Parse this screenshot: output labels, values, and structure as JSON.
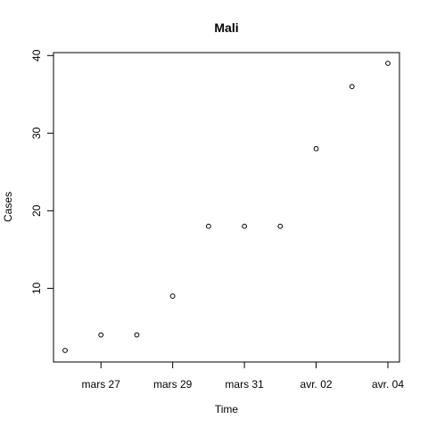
{
  "chart_data": {
    "type": "scatter",
    "title": "Mali",
    "xlabel": "Time",
    "ylabel": "Cases",
    "x": [
      "2020-03-25",
      "2020-03-26",
      "2020-03-27",
      "2020-03-28",
      "2020-03-29",
      "2020-03-30",
      "2020-03-31",
      "2020-04-01",
      "2020-04-02",
      "2020-04-03"
    ],
    "values": [
      2,
      4,
      4,
      9,
      18,
      18,
      18,
      28,
      36,
      39
    ],
    "xlim": [
      "2020-03-25",
      "2020-04-03"
    ],
    "ylim": [
      2,
      39
    ],
    "x_ticks": [
      {
        "date": "2020-03-26",
        "label": "mars 27"
      },
      {
        "date": "2020-03-28",
        "label": "mars 29"
      },
      {
        "date": "2020-03-30",
        "label": "mars 31"
      },
      {
        "date": "2020-04-01",
        "label": "avr. 02"
      },
      {
        "date": "2020-04-03",
        "label": "avr. 04"
      }
    ],
    "y_ticks": [
      10,
      20,
      30,
      40
    ],
    "grid": false,
    "marker": "open-circle"
  }
}
